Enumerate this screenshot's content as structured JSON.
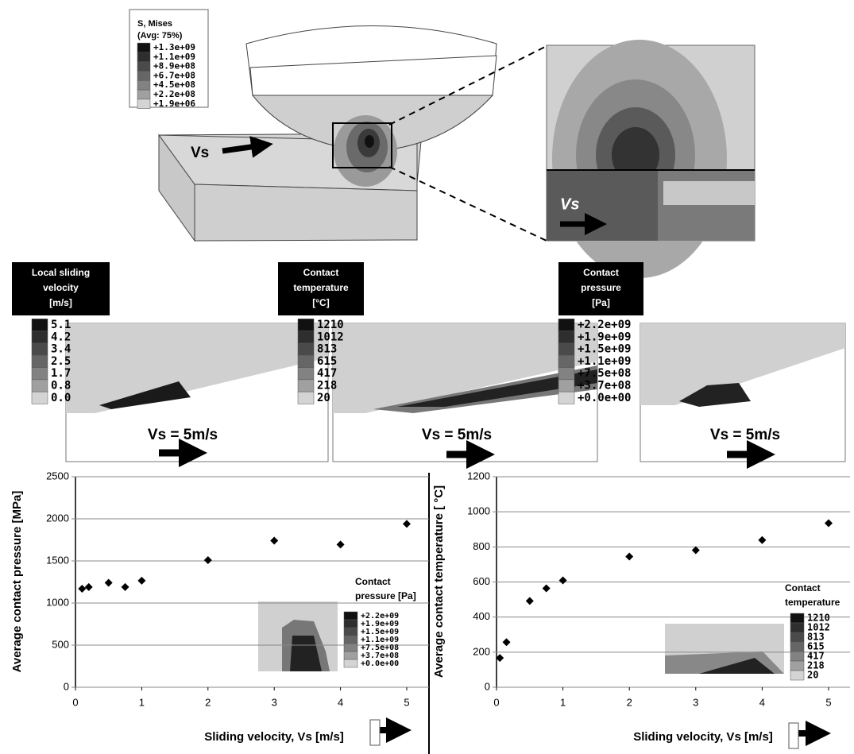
{
  "top_model": {
    "legend_title": "S, Mises",
    "legend_subtitle": "(Avg: 75%)",
    "legend_levels": [
      "+1.3e+09",
      "+1.1e+09",
      "+8.9e+08",
      "+6.7e+08",
      "+4.5e+08",
      "+2.2e+08",
      "+1.9e+06"
    ],
    "velocity_label": "Vs",
    "zoom_velocity_label": "Vs"
  },
  "panels": [
    {
      "title_lines": [
        "Local sliding",
        "velocity",
        "[m/s]"
      ],
      "levels": [
        "5.1",
        "4.2",
        "3.4",
        "2.5",
        "1.7",
        "0.8",
        "0.0"
      ],
      "velocity_label": "Vs = 5m/s"
    },
    {
      "title_lines": [
        "Contact",
        "temperature",
        "[°C]"
      ],
      "levels": [
        "1210",
        "1012",
        "813",
        "615",
        "417",
        "218",
        "20"
      ],
      "velocity_label": "Vs = 5m/s"
    },
    {
      "title_lines": [
        "Contact",
        "pressure",
        "[Pa]"
      ],
      "levels": [
        "+2.2e+09",
        "+1.9e+09",
        "+1.5e+09",
        "+1.1e+09",
        "+7.5e+08",
        "+3.7e+08",
        "+0.0e+00"
      ],
      "velocity_label": "Vs = 5m/s"
    }
  ],
  "chart_data": [
    {
      "type": "scatter",
      "x_label": "Sliding velocity, Vs [m/s]",
      "y_label": "Average contact pressure [MPa]",
      "x": [
        0.1,
        0.2,
        0.5,
        0.75,
        1,
        2,
        3,
        4,
        5
      ],
      "values": [
        1170,
        1190,
        1240,
        1190,
        1265,
        1510,
        1740,
        1695,
        1940
      ],
      "color": "#000000",
      "xlim": [
        0,
        5
      ],
      "xticks": [
        0,
        1,
        2,
        3,
        4,
        5
      ],
      "ylim": [
        0,
        2500
      ],
      "yticks": [
        0,
        500,
        1000,
        1500,
        2000,
        2500
      ],
      "grid": true,
      "inset": {
        "title_lines": [
          "Contact",
          "pressure [Pa]"
        ],
        "levels": [
          "+2.2e+09",
          "+1.9e+09",
          "+1.5e+09",
          "+1.1e+09",
          "+7.5e+08",
          "+3.7e+08",
          "+0.0e+00"
        ]
      }
    },
    {
      "type": "scatter",
      "x_label": "Sliding velocity, Vs [m/s]",
      "y_label": "Average contact temperature [ °C]",
      "x": [
        0.05,
        0.15,
        0.5,
        0.75,
        1,
        2,
        3,
        4,
        5
      ],
      "values": [
        167,
        257,
        492,
        564,
        609,
        745,
        781,
        839,
        935
      ],
      "color": "#000000",
      "xlim": [
        0,
        5
      ],
      "xticks": [
        0,
        1,
        2,
        3,
        4,
        5
      ],
      "ylim": [
        0,
        1200
      ],
      "yticks": [
        0,
        200,
        400,
        600,
        800,
        1000,
        1200
      ],
      "grid": true,
      "inset": {
        "title_lines": [
          "Contact",
          "temperature"
        ],
        "levels": [
          "1210",
          "1012",
          "813",
          "615",
          "417",
          "218",
          "20"
        ]
      }
    }
  ]
}
